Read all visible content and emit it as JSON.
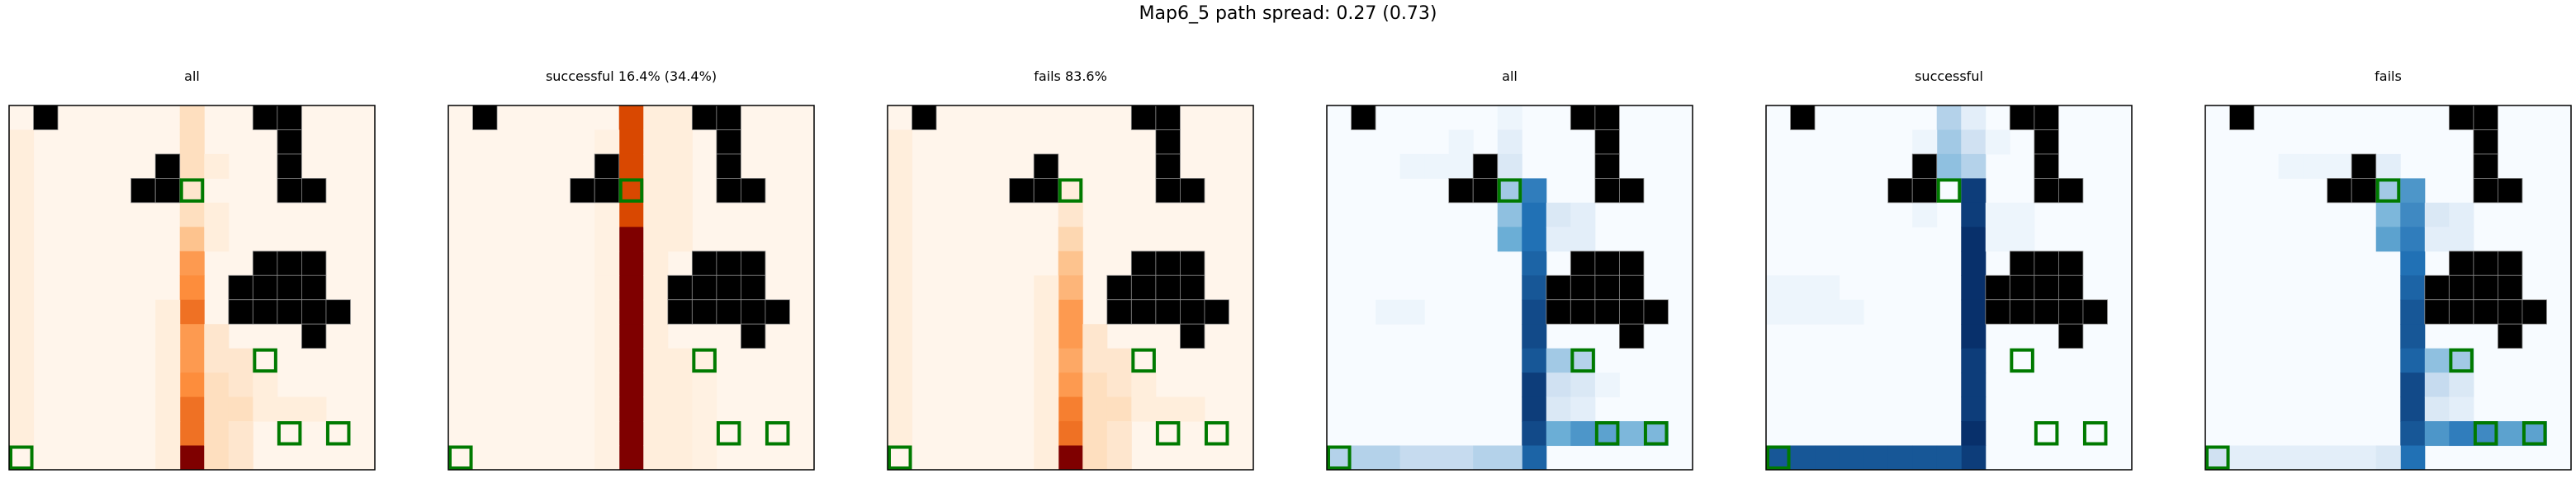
{
  "suptitle": "Map6_5 path spread: 0.27 (0.73)",
  "grid": {
    "cols": 15,
    "rows": 15
  },
  "colors": {
    "obstacle": "#000000",
    "goal_outline": "#007a00",
    "frame": "#000000",
    "gridline": "#8a8a8a",
    "oranges_low": "#fff5eb",
    "oranges_high": "#7f0000",
    "blues_low": "#f7fbff",
    "blues_high": "#08306b"
  },
  "obstacles": [
    [
      1,
      0
    ],
    [
      10,
      0
    ],
    [
      11,
      0
    ],
    [
      11,
      1
    ],
    [
      11,
      2
    ],
    [
      6,
      2
    ],
    [
      5,
      3
    ],
    [
      6,
      3
    ],
    [
      11,
      3
    ],
    [
      12,
      3
    ],
    [
      10,
      6
    ],
    [
      11,
      6
    ],
    [
      12,
      6
    ],
    [
      9,
      7
    ],
    [
      10,
      7
    ],
    [
      11,
      7
    ],
    [
      12,
      7
    ],
    [
      9,
      8
    ],
    [
      10,
      8
    ],
    [
      11,
      8
    ],
    [
      12,
      8
    ],
    [
      13,
      8
    ],
    [
      12,
      9
    ]
  ],
  "goals": [
    [
      7,
      3
    ],
    [
      10,
      10
    ],
    [
      11,
      13
    ],
    [
      13,
      13
    ],
    [
      0,
      14
    ]
  ],
  "chart_data": [
    {
      "type": "heatmap",
      "title": "all",
      "colormap": "Oranges",
      "cells": [
        [
          7,
          0,
          0.15
        ],
        [
          7,
          1,
          0.15
        ],
        [
          7,
          2,
          0.15
        ],
        [
          8,
          2,
          0.05
        ],
        [
          7,
          3,
          0.1
        ],
        [
          7,
          4,
          0.15
        ],
        [
          7,
          5,
          0.3
        ],
        [
          7,
          6,
          0.45
        ],
        [
          7,
          7,
          0.5
        ],
        [
          7,
          8,
          0.6
        ],
        [
          7,
          9,
          0.45
        ],
        [
          7,
          10,
          0.45
        ],
        [
          7,
          11,
          0.5
        ],
        [
          7,
          12,
          0.6
        ],
        [
          7,
          13,
          0.6
        ],
        [
          7,
          14,
          1.0
        ],
        [
          6,
          8,
          0.05
        ],
        [
          6,
          9,
          0.05
        ],
        [
          6,
          10,
          0.05
        ],
        [
          6,
          11,
          0.05
        ],
        [
          6,
          12,
          0.05
        ],
        [
          6,
          13,
          0.05
        ],
        [
          6,
          14,
          0.05
        ],
        [
          8,
          4,
          0.05
        ],
        [
          8,
          5,
          0.05
        ],
        [
          8,
          9,
          0.1
        ],
        [
          8,
          10,
          0.1
        ],
        [
          8,
          11,
          0.15
        ],
        [
          8,
          12,
          0.15
        ],
        [
          8,
          13,
          0.15
        ],
        [
          8,
          14,
          0.15
        ],
        [
          9,
          10,
          0.1
        ],
        [
          9,
          11,
          0.1
        ],
        [
          9,
          12,
          0.15
        ],
        [
          9,
          13,
          0.1
        ],
        [
          9,
          14,
          0.1
        ],
        [
          10,
          11,
          0.05
        ],
        [
          10,
          12,
          0.05
        ],
        [
          11,
          12,
          0.05
        ],
        [
          12,
          12,
          0.05
        ],
        [
          0,
          1,
          0.05
        ],
        [
          0,
          2,
          0.05
        ],
        [
          0,
          3,
          0.05
        ],
        [
          0,
          4,
          0.05
        ],
        [
          0,
          5,
          0.05
        ],
        [
          0,
          6,
          0.05
        ],
        [
          0,
          7,
          0.05
        ],
        [
          0,
          8,
          0.05
        ],
        [
          0,
          9,
          0.05
        ],
        [
          0,
          10,
          0.05
        ],
        [
          0,
          11,
          0.05
        ],
        [
          0,
          12,
          0.05
        ],
        [
          0,
          13,
          0.05
        ]
      ]
    },
    {
      "type": "heatmap",
      "title": "successful 16.4% (34.4%)",
      "colormap": "Oranges",
      "cells": [
        [
          7,
          0,
          0.75
        ],
        [
          7,
          1,
          0.75
        ],
        [
          7,
          2,
          0.75
        ],
        [
          7,
          3,
          0.75
        ],
        [
          7,
          4,
          0.75
        ],
        [
          7,
          5,
          1.0
        ],
        [
          7,
          6,
          1.0
        ],
        [
          7,
          7,
          1.0
        ],
        [
          7,
          8,
          1.0
        ],
        [
          7,
          9,
          1.0
        ],
        [
          7,
          10,
          1.0
        ],
        [
          7,
          11,
          1.0
        ],
        [
          7,
          12,
          1.0
        ],
        [
          7,
          13,
          1.0
        ],
        [
          7,
          14,
          1.0
        ],
        [
          8,
          0,
          0.05
        ],
        [
          8,
          1,
          0.05
        ],
        [
          8,
          2,
          0.05
        ],
        [
          8,
          3,
          0.05
        ],
        [
          8,
          4,
          0.05
        ],
        [
          8,
          5,
          0.05
        ],
        [
          8,
          6,
          0.05
        ],
        [
          8,
          7,
          0.05
        ],
        [
          8,
          8,
          0.05
        ],
        [
          8,
          9,
          0.05
        ],
        [
          8,
          10,
          0.05
        ],
        [
          8,
          11,
          0.05
        ],
        [
          8,
          12,
          0.05
        ],
        [
          8,
          13,
          0.05
        ],
        [
          8,
          14,
          0.05
        ],
        [
          6,
          1,
          0.03
        ],
        [
          6,
          4,
          0.03
        ],
        [
          6,
          5,
          0.03
        ],
        [
          6,
          6,
          0.03
        ],
        [
          6,
          7,
          0.03
        ],
        [
          6,
          8,
          0.03
        ],
        [
          6,
          9,
          0.03
        ],
        [
          6,
          10,
          0.03
        ],
        [
          6,
          11,
          0.03
        ],
        [
          6,
          12,
          0.03
        ],
        [
          6,
          13,
          0.03
        ],
        [
          6,
          14,
          0.03
        ],
        [
          9,
          0,
          0.05
        ],
        [
          9,
          1,
          0.05
        ],
        [
          9,
          2,
          0.05
        ],
        [
          9,
          3,
          0.05
        ],
        [
          9,
          4,
          0.05
        ],
        [
          9,
          5,
          0.05
        ],
        [
          9,
          10,
          0.05
        ],
        [
          9,
          11,
          0.05
        ],
        [
          9,
          12,
          0.05
        ],
        [
          9,
          13,
          0.05
        ],
        [
          9,
          14,
          0.05
        ],
        [
          10,
          10,
          0.03
        ],
        [
          10,
          11,
          0.03
        ],
        [
          10,
          12,
          0.03
        ],
        [
          10,
          13,
          0.03
        ],
        [
          10,
          14,
          0.03
        ]
      ]
    },
    {
      "type": "heatmap",
      "title": "fails 83.6%",
      "colormap": "Oranges",
      "cells": [
        [
          7,
          3,
          0.05
        ],
        [
          7,
          4,
          0.1
        ],
        [
          7,
          5,
          0.2
        ],
        [
          7,
          6,
          0.3
        ],
        [
          7,
          7,
          0.35
        ],
        [
          7,
          8,
          0.45
        ],
        [
          7,
          9,
          0.45
        ],
        [
          7,
          10,
          0.4
        ],
        [
          7,
          11,
          0.45
        ],
        [
          7,
          12,
          0.55
        ],
        [
          7,
          13,
          0.6
        ],
        [
          7,
          14,
          1.0
        ],
        [
          6,
          7,
          0.05
        ],
        [
          6,
          8,
          0.05
        ],
        [
          6,
          9,
          0.05
        ],
        [
          6,
          10,
          0.05
        ],
        [
          6,
          11,
          0.05
        ],
        [
          6,
          12,
          0.05
        ],
        [
          6,
          13,
          0.05
        ],
        [
          6,
          14,
          0.05
        ],
        [
          8,
          9,
          0.1
        ],
        [
          8,
          10,
          0.1
        ],
        [
          8,
          11,
          0.15
        ],
        [
          8,
          12,
          0.15
        ],
        [
          8,
          13,
          0.15
        ],
        [
          8,
          14,
          0.15
        ],
        [
          9,
          10,
          0.1
        ],
        [
          9,
          11,
          0.1
        ],
        [
          9,
          12,
          0.15
        ],
        [
          9,
          13,
          0.1
        ],
        [
          9,
          14,
          0.1
        ],
        [
          10,
          11,
          0.05
        ],
        [
          10,
          12,
          0.05
        ],
        [
          11,
          12,
          0.05
        ],
        [
          12,
          12,
          0.05
        ],
        [
          0,
          1,
          0.05
        ],
        [
          0,
          2,
          0.05
        ],
        [
          0,
          3,
          0.05
        ],
        [
          0,
          4,
          0.05
        ],
        [
          0,
          5,
          0.05
        ],
        [
          0,
          6,
          0.05
        ],
        [
          0,
          7,
          0.05
        ],
        [
          0,
          8,
          0.05
        ],
        [
          0,
          9,
          0.05
        ],
        [
          0,
          10,
          0.05
        ],
        [
          0,
          11,
          0.05
        ],
        [
          0,
          12,
          0.05
        ],
        [
          0,
          13,
          0.05
        ]
      ]
    },
    {
      "type": "heatmap",
      "title": "all",
      "colormap": "Blues",
      "cells": [
        [
          7,
          0,
          0.05
        ],
        [
          7,
          1,
          0.1
        ],
        [
          7,
          2,
          0.15
        ],
        [
          7,
          3,
          0.35
        ],
        [
          7,
          4,
          0.4
        ],
        [
          7,
          5,
          0.5
        ],
        [
          8,
          3,
          0.7
        ],
        [
          8,
          4,
          0.75
        ],
        [
          8,
          5,
          0.75
        ],
        [
          8,
          6,
          0.8
        ],
        [
          8,
          7,
          0.85
        ],
        [
          8,
          8,
          0.9
        ],
        [
          8,
          9,
          0.9
        ],
        [
          8,
          10,
          0.85
        ],
        [
          8,
          11,
          0.95
        ],
        [
          8,
          12,
          0.95
        ],
        [
          8,
          13,
          0.9
        ],
        [
          8,
          14,
          0.8
        ],
        [
          9,
          4,
          0.15
        ],
        [
          9,
          5,
          0.1
        ],
        [
          9,
          10,
          0.35
        ],
        [
          9,
          11,
          0.2
        ],
        [
          9,
          12,
          0.15
        ],
        [
          9,
          13,
          0.5
        ],
        [
          10,
          4,
          0.1
        ],
        [
          10,
          5,
          0.1
        ],
        [
          10,
          10,
          0.3
        ],
        [
          10,
          11,
          0.15
        ],
        [
          10,
          12,
          0.1
        ],
        [
          10,
          13,
          0.6
        ],
        [
          11,
          13,
          0.55
        ],
        [
          11,
          11,
          0.05
        ],
        [
          12,
          13,
          0.45
        ],
        [
          13,
          13,
          0.45
        ],
        [
          1,
          14,
          0.3
        ],
        [
          2,
          14,
          0.3
        ],
        [
          3,
          14,
          0.25
        ],
        [
          4,
          14,
          0.25
        ],
        [
          5,
          14,
          0.25
        ],
        [
          6,
          14,
          0.3
        ],
        [
          7,
          14,
          0.3
        ],
        [
          0,
          14,
          0.3
        ],
        [
          3,
          2,
          0.05
        ],
        [
          4,
          2,
          0.05
        ],
        [
          5,
          2,
          0.05
        ],
        [
          2,
          8,
          0.05
        ],
        [
          3,
          8,
          0.05
        ],
        [
          5,
          1,
          0.05
        ]
      ]
    },
    {
      "type": "heatmap",
      "title": "successful",
      "colormap": "Blues",
      "cells": [
        [
          7,
          0,
          0.3
        ],
        [
          7,
          1,
          0.35
        ],
        [
          7,
          2,
          0.4
        ],
        [
          8,
          0,
          0.1
        ],
        [
          8,
          1,
          0.2
        ],
        [
          8,
          2,
          0.3
        ],
        [
          8,
          3,
          0.95
        ],
        [
          8,
          4,
          0.95
        ],
        [
          8,
          5,
          1.0
        ],
        [
          8,
          6,
          1.0
        ],
        [
          8,
          7,
          1.0
        ],
        [
          8,
          8,
          1.0
        ],
        [
          8,
          9,
          1.0
        ],
        [
          8,
          10,
          0.95
        ],
        [
          8,
          11,
          0.95
        ],
        [
          8,
          12,
          0.95
        ],
        [
          8,
          13,
          1.0
        ],
        [
          8,
          14,
          0.95
        ],
        [
          6,
          1,
          0.05
        ],
        [
          9,
          1,
          0.05
        ],
        [
          6,
          4,
          0.05
        ],
        [
          9,
          4,
          0.05
        ],
        [
          9,
          5,
          0.05
        ],
        [
          10,
          4,
          0.05
        ],
        [
          10,
          5,
          0.05
        ],
        [
          1,
          14,
          0.85
        ],
        [
          2,
          14,
          0.85
        ],
        [
          3,
          14,
          0.85
        ],
        [
          4,
          14,
          0.85
        ],
        [
          5,
          14,
          0.85
        ],
        [
          6,
          14,
          0.85
        ],
        [
          7,
          14,
          0.85
        ],
        [
          0,
          14,
          0.85
        ],
        [
          0,
          7,
          0.05
        ],
        [
          1,
          7,
          0.05
        ],
        [
          2,
          7,
          0.05
        ],
        [
          0,
          8,
          0.05
        ],
        [
          1,
          8,
          0.05
        ],
        [
          2,
          8,
          0.05
        ],
        [
          3,
          8,
          0.05
        ]
      ]
    },
    {
      "type": "heatmap",
      "title": "fails",
      "colormap": "Blues",
      "cells": [
        [
          7,
          2,
          0.1
        ],
        [
          7,
          3,
          0.35
        ],
        [
          7,
          4,
          0.45
        ],
        [
          7,
          5,
          0.55
        ],
        [
          8,
          3,
          0.6
        ],
        [
          8,
          4,
          0.65
        ],
        [
          8,
          5,
          0.7
        ],
        [
          8,
          6,
          0.75
        ],
        [
          8,
          7,
          0.8
        ],
        [
          8,
          8,
          0.85
        ],
        [
          8,
          9,
          0.85
        ],
        [
          8,
          10,
          0.8
        ],
        [
          8,
          11,
          0.9
        ],
        [
          8,
          12,
          0.9
        ],
        [
          8,
          13,
          0.85
        ],
        [
          8,
          14,
          0.75
        ],
        [
          9,
          4,
          0.15
        ],
        [
          9,
          5,
          0.1
        ],
        [
          9,
          10,
          0.4
        ],
        [
          9,
          11,
          0.25
        ],
        [
          9,
          12,
          0.15
        ],
        [
          9,
          13,
          0.6
        ],
        [
          10,
          4,
          0.1
        ],
        [
          10,
          5,
          0.1
        ],
        [
          10,
          10,
          0.35
        ],
        [
          10,
          11,
          0.15
        ],
        [
          10,
          12,
          0.1
        ],
        [
          10,
          13,
          0.7
        ],
        [
          11,
          13,
          0.65
        ],
        [
          12,
          13,
          0.55
        ],
        [
          13,
          13,
          0.55
        ],
        [
          1,
          14,
          0.1
        ],
        [
          2,
          14,
          0.1
        ],
        [
          3,
          14,
          0.1
        ],
        [
          4,
          14,
          0.1
        ],
        [
          5,
          14,
          0.1
        ],
        [
          6,
          14,
          0.1
        ],
        [
          7,
          14,
          0.15
        ],
        [
          0,
          14,
          0.2
        ],
        [
          3,
          2,
          0.05
        ],
        [
          4,
          2,
          0.05
        ],
        [
          5,
          2,
          0.05
        ]
      ]
    }
  ]
}
